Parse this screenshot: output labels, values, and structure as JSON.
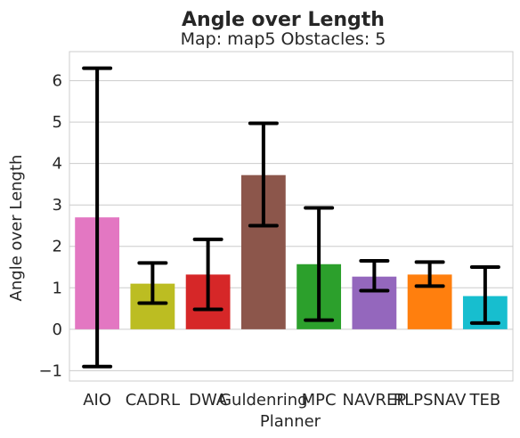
{
  "chart_data": {
    "type": "bar",
    "title": "Angle over Length",
    "subtitle": "Map: map5 Obstacles: 5",
    "xlabel": "Planner",
    "ylabel": "Angle over Length",
    "ylim": [
      -1.25,
      6.7
    ],
    "yticks": [
      -1,
      0,
      1,
      2,
      3,
      4,
      5,
      6
    ],
    "ytick_labels": [
      "−1",
      "0",
      "1",
      "2",
      "3",
      "4",
      "5",
      "6"
    ],
    "grid": "horizontal",
    "categories": [
      "AIO",
      "CADRL",
      "DWA",
      "Guldenring",
      "MPC",
      "NAVREP",
      "RLPSNAV",
      "TEB"
    ],
    "values": [
      2.7,
      1.1,
      1.32,
      3.72,
      1.57,
      1.27,
      1.32,
      0.8
    ],
    "error_low": [
      -0.9,
      0.63,
      0.48,
      2.5,
      0.22,
      0.93,
      1.04,
      0.15
    ],
    "error_high": [
      6.3,
      1.6,
      2.17,
      4.97,
      2.93,
      1.65,
      1.62,
      1.5
    ],
    "colors": [
      "#e377c2",
      "#bcbd22",
      "#d62728",
      "#8c564b",
      "#2ca02c",
      "#9467bd",
      "#ff7f0e",
      "#17becf"
    ]
  }
}
